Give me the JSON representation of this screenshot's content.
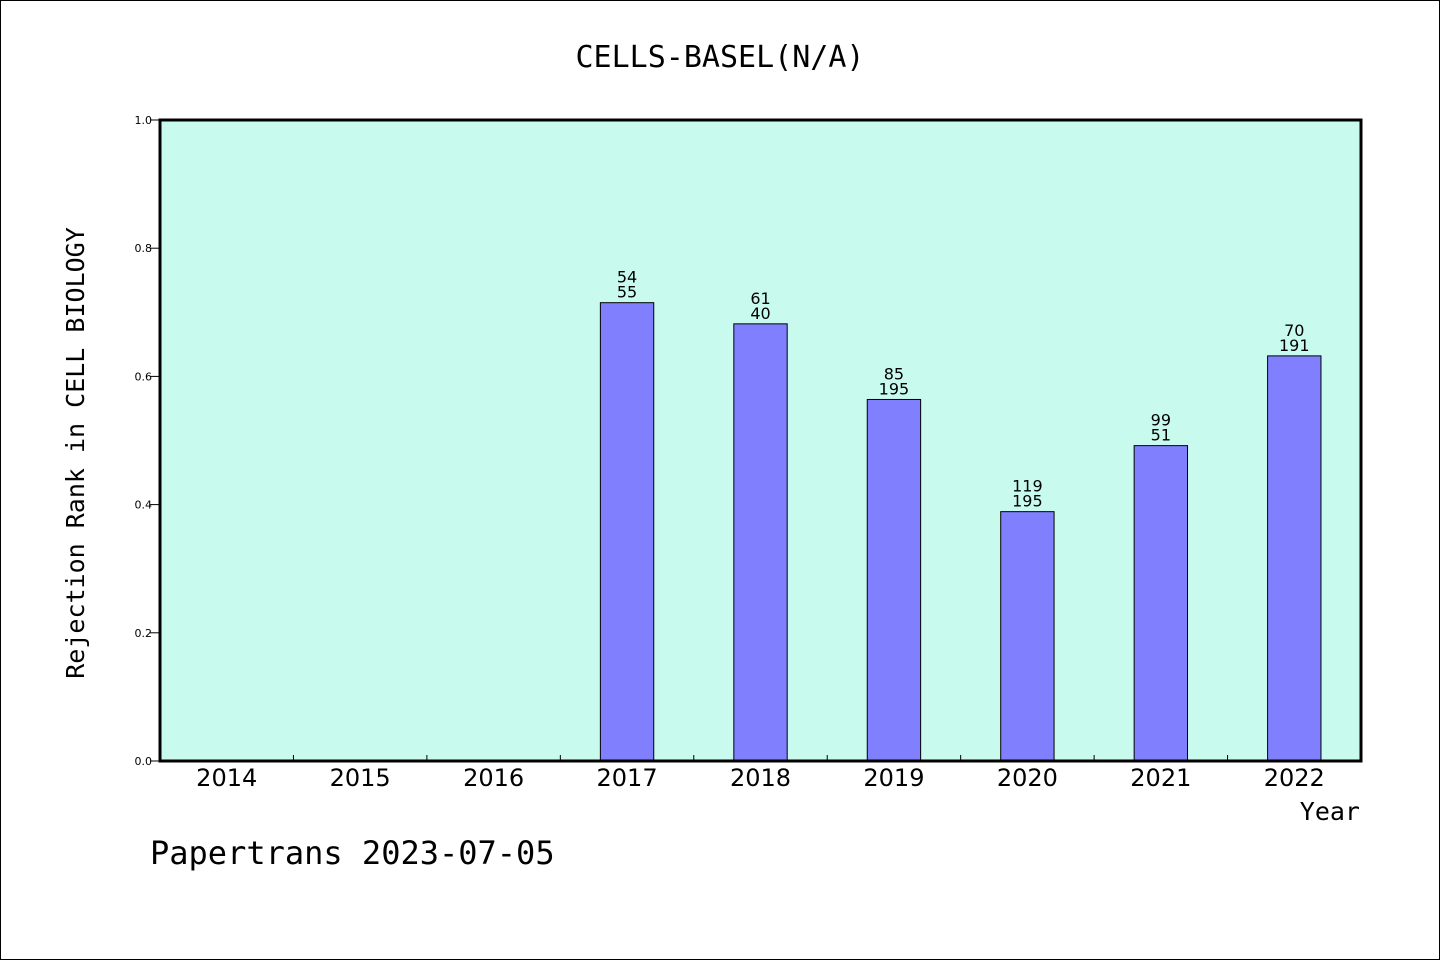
{
  "chart_data": {
    "type": "bar",
    "title": "CELLS-BASEL(N/A)",
    "xlabel": "Year",
    "ylabel": "Rejection Rank in CELL BIOLOGY",
    "ylim": [
      0,
      1.0
    ],
    "yticks": [
      "0.0",
      "0.2",
      "0.4",
      "0.6",
      "0.8",
      "1.0"
    ],
    "categories": [
      "2014",
      "2015",
      "2016",
      "2017",
      "2018",
      "2019",
      "2020",
      "2021",
      "2022"
    ],
    "values": [
      null,
      null,
      null,
      0.715,
      0.682,
      0.564,
      0.389,
      0.492,
      0.632
    ],
    "labels_top": [
      "",
      "",
      "",
      "54",
      "61",
      "85",
      "119",
      "99",
      "70"
    ],
    "labels_bottom": [
      "",
      "",
      "",
      "55",
      "40",
      "195",
      "195",
      "51",
      "191"
    ],
    "grid": false,
    "plot_background": "#c8fbee",
    "bar_color": "#8080ff"
  },
  "footer": "Papertrans 2023-07-05"
}
